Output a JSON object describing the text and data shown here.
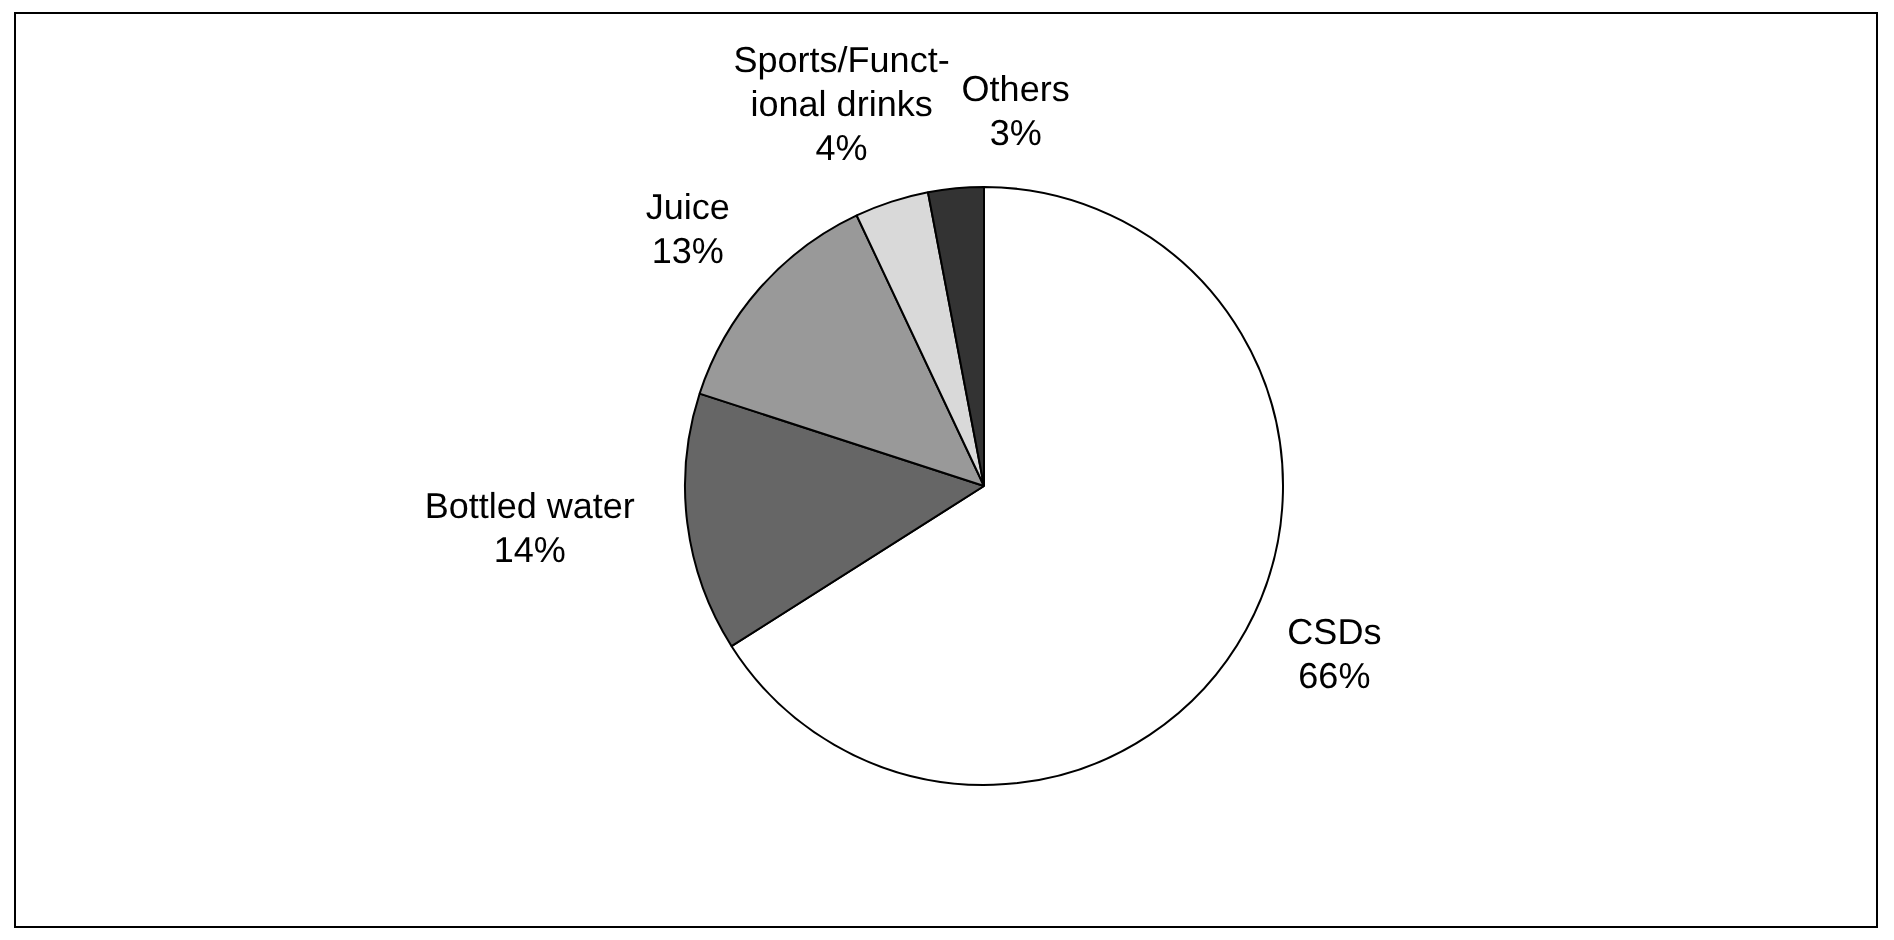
{
  "chart_data": {
    "type": "pie",
    "categories": [
      "CSDs",
      "Bottled water",
      "Juice",
      "Sports/Funct-\nional drinks",
      "Others"
    ],
    "values": [
      66,
      14,
      13,
      4,
      3
    ],
    "colors": [
      "#ffffff",
      "#666666",
      "#999999",
      "#d9d9d9",
      "#333333"
    ],
    "value_labels": [
      "66%",
      "14%",
      "13%",
      "4%",
      "3%"
    ],
    "legend": false
  }
}
